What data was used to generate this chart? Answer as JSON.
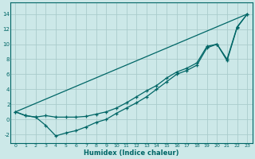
{
  "xlabel": "Humidex (Indice chaleur)",
  "xlim": [
    -0.5,
    23.5
  ],
  "ylim": [
    -3.2,
    15.5
  ],
  "yticks": [
    -2,
    0,
    2,
    4,
    6,
    8,
    10,
    12,
    14
  ],
  "xticks": [
    0,
    1,
    2,
    3,
    4,
    5,
    6,
    7,
    8,
    9,
    10,
    11,
    12,
    13,
    14,
    15,
    16,
    17,
    18,
    19,
    20,
    21,
    22,
    23
  ],
  "background_color": "#cce8e8",
  "grid_color": "#aacccc",
  "line_color": "#006666",
  "line1_x": [
    0,
    1,
    2,
    3,
    4,
    5,
    6,
    7,
    8,
    9,
    10,
    11,
    12,
    13,
    14,
    15,
    16,
    17,
    18,
    19,
    20,
    21,
    22,
    23
  ],
  "line1_y": [
    1.0,
    0.5,
    0.3,
    -0.8,
    -2.2,
    -1.8,
    -1.5,
    -1.0,
    -0.4,
    0.0,
    0.8,
    1.5,
    2.2,
    3.0,
    4.0,
    5.0,
    6.0,
    6.5,
    7.2,
    9.5,
    10.0,
    7.8,
    12.2,
    14.0
  ],
  "line2_x": [
    0,
    1,
    2,
    3,
    4,
    5,
    6,
    7,
    8,
    9,
    10,
    11,
    12,
    13,
    14,
    15,
    16,
    17,
    18,
    19,
    20,
    21,
    22,
    23
  ],
  "line2_y": [
    1.0,
    0.5,
    0.3,
    0.5,
    0.3,
    0.3,
    0.3,
    0.4,
    0.7,
    1.0,
    1.5,
    2.2,
    3.0,
    3.8,
    4.5,
    5.5,
    6.3,
    6.8,
    7.5,
    9.7,
    10.0,
    8.0,
    12.3,
    14.0
  ],
  "line3_x": [
    0,
    23
  ],
  "line3_y": [
    1.0,
    14.0
  ],
  "figsize": [
    3.2,
    2.0
  ],
  "dpi": 100
}
